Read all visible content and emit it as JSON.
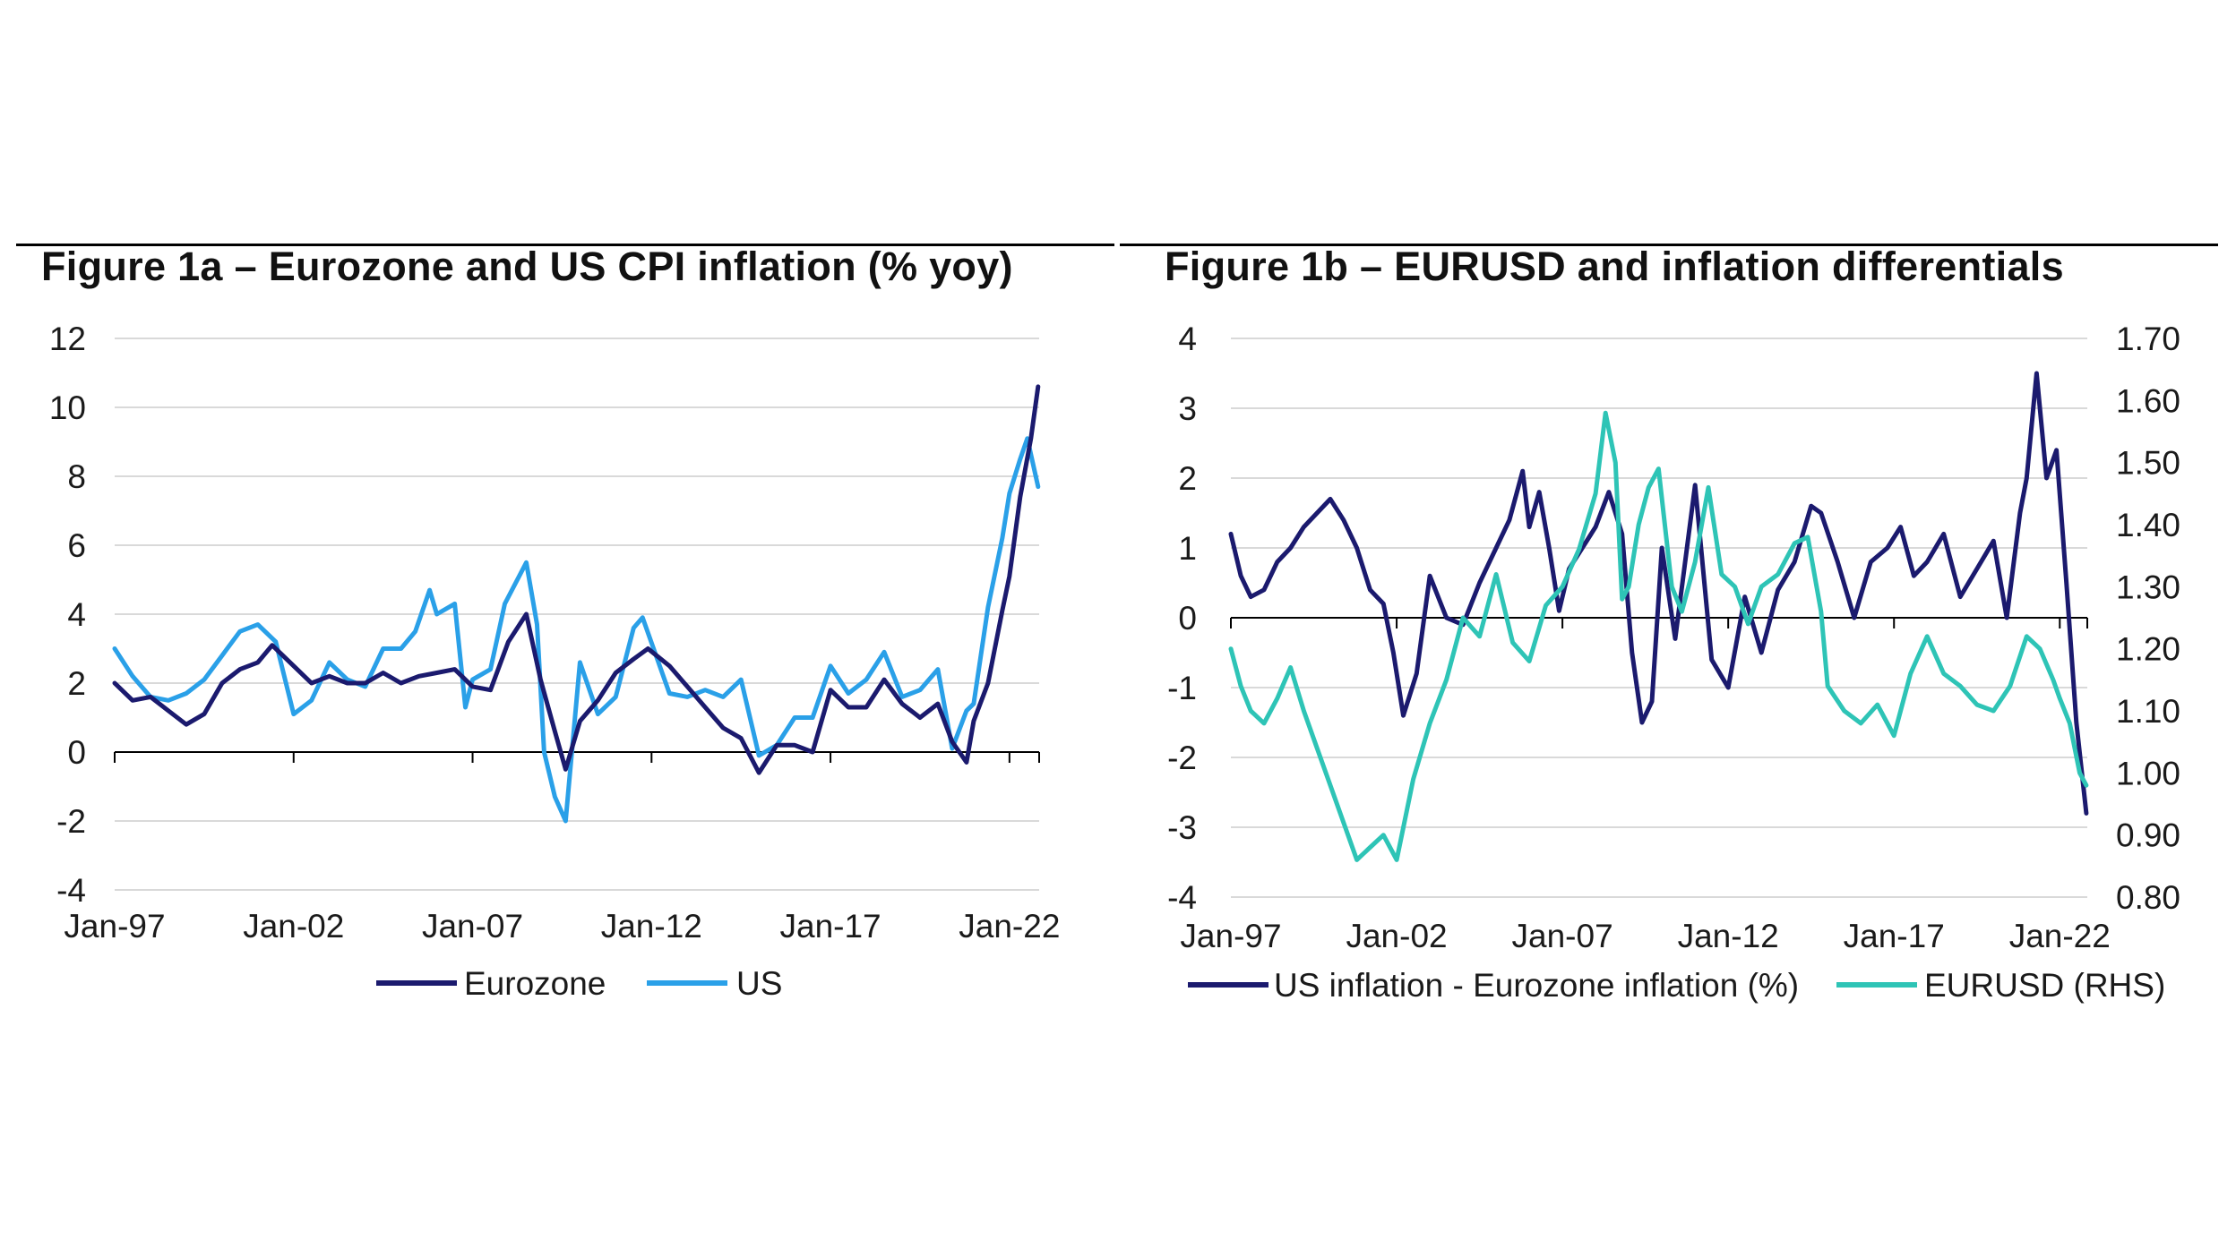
{
  "figure_a": {
    "title": "Figure 1a – Eurozone and US CPI inflation (% yoy)"
  },
  "figure_b": {
    "title": "Figure 1b – EURUSD and inflation differentials"
  },
  "colors": {
    "eurozone": "#1b1a6e",
    "us": "#2aa0e8",
    "diff": "#1b1a6e",
    "eurusd": "#2ec4b6",
    "grid": "#d9d9d9",
    "axis": "#000000"
  },
  "chart_data": [
    {
      "type": "line",
      "title": "Figure 1a – Eurozone and US CPI inflation (% yoy)",
      "xlabel": "",
      "ylabel": "",
      "ylim": [
        -4,
        12
      ],
      "yticks": [
        -4,
        -2,
        0,
        2,
        4,
        6,
        8,
        10,
        12
      ],
      "ytick_labels": [
        "-4",
        "-2",
        "0",
        "2",
        "4",
        "6",
        "8",
        "10",
        "12"
      ],
      "xlim": [
        1997.0,
        2022.83
      ],
      "xticks": [
        1997,
        2002,
        2007,
        2012,
        2017,
        2022
      ],
      "xtick_labels": [
        "Jan-97",
        "Jan-02",
        "Jan-07",
        "Jan-12",
        "Jan-17",
        "Jan-22"
      ],
      "legend_position": "bottom",
      "series": [
        {
          "name": "Eurozone",
          "x": [
            1997.0,
            1997.5,
            1998.0,
            1998.5,
            1999.0,
            1999.5,
            2000.0,
            2000.5,
            2001.0,
            2001.4,
            2002.0,
            2002.5,
            2003.0,
            2003.5,
            2004.0,
            2004.5,
            2005.0,
            2005.5,
            2006.0,
            2006.5,
            2007.0,
            2007.5,
            2008.0,
            2008.5,
            2008.9,
            2009.3,
            2009.6,
            2010.0,
            2010.5,
            2011.0,
            2011.5,
            2011.9,
            2012.5,
            2013.0,
            2013.5,
            2014.0,
            2014.5,
            2015.0,
            2015.5,
            2016.0,
            2016.5,
            2017.0,
            2017.5,
            2018.0,
            2018.5,
            2019.0,
            2019.5,
            2020.0,
            2020.4,
            2020.8,
            2021.0,
            2021.4,
            2021.8,
            2022.0,
            2022.3,
            2022.6,
            2022.8
          ],
          "values": [
            2.0,
            1.5,
            1.6,
            1.2,
            0.8,
            1.1,
            2.0,
            2.4,
            2.6,
            3.1,
            2.5,
            2.0,
            2.2,
            2.0,
            2.0,
            2.3,
            2.0,
            2.2,
            2.3,
            2.4,
            1.9,
            1.8,
            3.2,
            4.0,
            2.1,
            0.6,
            -0.5,
            0.9,
            1.5,
            2.3,
            2.7,
            3.0,
            2.5,
            1.9,
            1.3,
            0.7,
            0.4,
            -0.6,
            0.2,
            0.2,
            0.0,
            1.8,
            1.3,
            1.3,
            2.1,
            1.4,
            1.0,
            1.4,
            0.3,
            -0.3,
            0.9,
            2.0,
            4.1,
            5.1,
            7.4,
            9.1,
            10.6
          ]
        },
        {
          "name": "US",
          "x": [
            1997.0,
            1997.5,
            1998.0,
            1998.5,
            1999.0,
            1999.5,
            2000.0,
            2000.5,
            2001.0,
            2001.5,
            2002.0,
            2002.5,
            2003.0,
            2003.5,
            2004.0,
            2004.5,
            2005.0,
            2005.4,
            2005.8,
            2006.0,
            2006.5,
            2006.8,
            2007.0,
            2007.5,
            2007.9,
            2008.5,
            2008.8,
            2009.0,
            2009.3,
            2009.6,
            2010.0,
            2010.5,
            2011.0,
            2011.5,
            2011.75,
            2012.5,
            2013.0,
            2013.5,
            2014.0,
            2014.5,
            2015.0,
            2015.5,
            2016.0,
            2016.5,
            2017.0,
            2017.5,
            2018.0,
            2018.5,
            2019.0,
            2019.5,
            2020.0,
            2020.4,
            2020.8,
            2021.0,
            2021.4,
            2021.8,
            2022.0,
            2022.3,
            2022.5,
            2022.8
          ],
          "values": [
            3.0,
            2.2,
            1.6,
            1.5,
            1.7,
            2.1,
            2.8,
            3.5,
            3.7,
            3.2,
            1.1,
            1.5,
            2.6,
            2.1,
            1.9,
            3.0,
            3.0,
            3.5,
            4.7,
            4.0,
            4.3,
            1.3,
            2.1,
            2.4,
            4.3,
            5.5,
            3.7,
            0.0,
            -1.3,
            -2.0,
            2.6,
            1.1,
            1.6,
            3.6,
            3.9,
            1.7,
            1.6,
            1.8,
            1.6,
            2.1,
            -0.1,
            0.2,
            1.0,
            1.0,
            2.5,
            1.7,
            2.1,
            2.9,
            1.6,
            1.8,
            2.4,
            0.1,
            1.2,
            1.4,
            4.2,
            6.2,
            7.5,
            8.5,
            9.1,
            7.7
          ]
        }
      ]
    },
    {
      "type": "line",
      "title": "Figure 1b – EURUSD and inflation differentials",
      "xlabel": "",
      "ylabel": "",
      "ylim": [
        -4,
        4
      ],
      "yticks": [
        -4,
        -3,
        -2,
        -1,
        0,
        1,
        2,
        3,
        4
      ],
      "ytick_labels": [
        "-4",
        "-3",
        "-2",
        "-1",
        "0",
        "1",
        "2",
        "3",
        "4"
      ],
      "ylim_rhs": [
        0.8,
        1.7
      ],
      "yticks_rhs": [
        0.8,
        0.9,
        1.0,
        1.1,
        1.2,
        1.3,
        1.4,
        1.5,
        1.6,
        1.7
      ],
      "ytick_labels_rhs": [
        "0.80",
        "0.90",
        "1.00",
        "1.10",
        "1.20",
        "1.30",
        "1.40",
        "1.50",
        "1.60",
        "1.70"
      ],
      "xlim": [
        1997.0,
        2022.83
      ],
      "xticks": [
        1997,
        2002,
        2007,
        2012,
        2017,
        2022
      ],
      "xtick_labels": [
        "Jan-97",
        "Jan-02",
        "Jan-07",
        "Jan-12",
        "Jan-17",
        "Jan-22"
      ],
      "legend_position": "bottom",
      "series": [
        {
          "name": "US inflation - Eurozone inflation (%)",
          "axis": "left",
          "x": [
            1997.0,
            1997.3,
            1997.6,
            1998.0,
            1998.4,
            1998.8,
            1999.2,
            1999.6,
            2000.0,
            2000.4,
            2000.8,
            2001.2,
            2001.6,
            2001.9,
            2002.2,
            2002.6,
            2003.0,
            2003.5,
            2004.0,
            2004.5,
            2005.0,
            2005.4,
            2005.8,
            2006.0,
            2006.3,
            2006.6,
            2006.9,
            2007.2,
            2007.6,
            2008.0,
            2008.4,
            2008.8,
            2009.1,
            2009.4,
            2009.7,
            2010.0,
            2010.4,
            2010.7,
            2011.0,
            2011.5,
            2012.0,
            2012.5,
            2013.0,
            2013.5,
            2014.0,
            2014.5,
            2014.8,
            2015.3,
            2015.8,
            2016.3,
            2016.8,
            2017.2,
            2017.6,
            2018.0,
            2018.5,
            2019.0,
            2019.5,
            2020.0,
            2020.4,
            2020.8,
            2021.0,
            2021.3,
            2021.6,
            2021.9,
            2022.2,
            2022.5,
            2022.8
          ],
          "values": [
            1.2,
            0.6,
            0.3,
            0.4,
            0.8,
            1.0,
            1.3,
            1.5,
            1.7,
            1.4,
            1.0,
            0.4,
            0.2,
            -0.5,
            -1.4,
            -0.8,
            0.6,
            0.0,
            -0.1,
            0.5,
            1.0,
            1.4,
            2.1,
            1.3,
            1.8,
            1.0,
            0.1,
            0.7,
            1.0,
            1.3,
            1.8,
            1.2,
            -0.5,
            -1.5,
            -1.2,
            1.0,
            -0.3,
            0.8,
            1.9,
            -0.6,
            -1.0,
            0.3,
            -0.5,
            0.4,
            0.8,
            1.6,
            1.5,
            0.8,
            0.0,
            0.8,
            1.0,
            1.3,
            0.6,
            0.8,
            1.2,
            0.3,
            0.7,
            1.1,
            0.0,
            1.5,
            2.0,
            3.5,
            2.0,
            2.4,
            0.5,
            -1.5,
            -2.8
          ]
        },
        {
          "name": "EURUSD (RHS)",
          "axis": "right",
          "x": [
            1997.0,
            1997.3,
            1997.6,
            1998.0,
            1998.4,
            1998.8,
            1999.2,
            1999.6,
            2000.0,
            2000.4,
            2000.8,
            2001.2,
            2001.6,
            2002.0,
            2002.5,
            2003.0,
            2003.5,
            2004.0,
            2004.5,
            2005.0,
            2005.5,
            2006.0,
            2006.5,
            2007.0,
            2007.5,
            2008.0,
            2008.3,
            2008.6,
            2008.8,
            2009.0,
            2009.3,
            2009.6,
            2009.9,
            2010.3,
            2010.6,
            2011.0,
            2011.4,
            2011.8,
            2012.2,
            2012.6,
            2013.0,
            2013.5,
            2014.0,
            2014.4,
            2014.8,
            2015.0,
            2015.5,
            2016.0,
            2016.5,
            2017.0,
            2017.5,
            2018.0,
            2018.5,
            2019.0,
            2019.5,
            2020.0,
            2020.5,
            2021.0,
            2021.4,
            2021.8,
            2022.0,
            2022.3,
            2022.6,
            2022.8
          ],
          "values": [
            1.2,
            1.14,
            1.1,
            1.08,
            1.12,
            1.17,
            1.1,
            1.04,
            0.98,
            0.92,
            0.86,
            0.88,
            0.9,
            0.86,
            0.99,
            1.08,
            1.15,
            1.25,
            1.22,
            1.32,
            1.21,
            1.18,
            1.27,
            1.3,
            1.36,
            1.45,
            1.58,
            1.5,
            1.28,
            1.3,
            1.4,
            1.46,
            1.49,
            1.3,
            1.26,
            1.34,
            1.46,
            1.32,
            1.3,
            1.24,
            1.3,
            1.32,
            1.37,
            1.38,
            1.26,
            1.14,
            1.1,
            1.08,
            1.11,
            1.06,
            1.16,
            1.22,
            1.16,
            1.14,
            1.11,
            1.1,
            1.14,
            1.22,
            1.2,
            1.15,
            1.12,
            1.08,
            1.0,
            0.98
          ]
        }
      ]
    }
  ],
  "legend": {
    "a": [
      "Eurozone",
      "US"
    ],
    "b": [
      "US inflation - Eurozone inflation (%)",
      "EURUSD (RHS)"
    ]
  }
}
